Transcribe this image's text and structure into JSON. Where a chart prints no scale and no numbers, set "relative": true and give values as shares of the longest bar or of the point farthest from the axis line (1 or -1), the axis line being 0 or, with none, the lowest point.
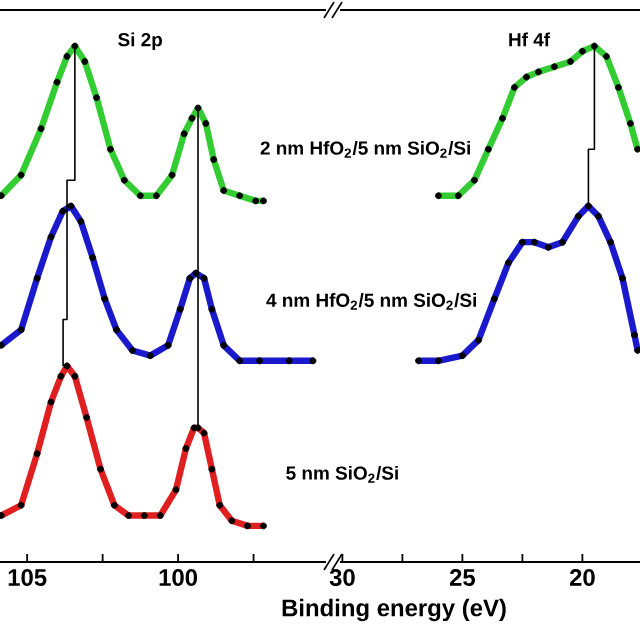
{
  "chart_data": [
    {
      "type": "line",
      "title": "Si 2p",
      "xlabel": "Binding energy (eV)",
      "relative": true,
      "xlim": [
        105.9,
        95.1
      ],
      "xticks": [
        105,
        {
          "value": 102.5,
          "label": null
        },
        100,
        {
          "value": 97.5,
          "label": null
        }
      ],
      "series": [
        {
          "type": "scatter",
          "marker": "circle",
          "color": "#000000",
          "x": [
            105.86,
            105.2,
            104.54,
            104.01,
            103.68,
            103.42,
            103.09,
            102.7,
            102.24,
            101.78,
            101.25,
            100.72,
            100.2,
            99.8,
            99.54,
            99.34,
            99.08,
            98.82,
            98.49,
            97.96,
            97.43,
            97.17
          ],
          "values": [
            0.71,
            0.75,
            0.84,
            0.93,
            0.98,
            1.0,
            0.97,
            0.9,
            0.8,
            0.74,
            0.71,
            0.71,
            0.75,
            0.83,
            0.86,
            0.88,
            0.85,
            0.78,
            0.72,
            0.71,
            0.7,
            0.7
          ]
        },
        {
          "name": "2 nm HfO$_{2}$/5 nm SiO$_{2}$/Si",
          "color": "#33cc33",
          "x": [
            105.86,
            105.2,
            104.54,
            104.01,
            103.68,
            103.42,
            103.09,
            102.7,
            102.24,
            101.78,
            101.25,
            100.72,
            100.2,
            99.8,
            99.54,
            99.34,
            99.08,
            98.82,
            98.49,
            97.96,
            97.43,
            97.17
          ],
          "values": [
            0.71,
            0.75,
            0.84,
            0.93,
            0.98,
            1.0,
            0.97,
            0.9,
            0.8,
            0.74,
            0.71,
            0.71,
            0.75,
            0.83,
            0.86,
            0.88,
            0.85,
            0.78,
            0.72,
            0.71,
            0.7,
            0.7
          ]
        },
        {
          "type": "scatter",
          "marker": "circle",
          "color": "#000000",
          "x": [
            105.86,
            105.2,
            104.67,
            104.21,
            103.82,
            103.55,
            103.22,
            102.83,
            102.43,
            102.04,
            101.51,
            100.92,
            100.33,
            99.93,
            99.61,
            99.41,
            99.14,
            98.88,
            98.49,
            97.96,
            97.3,
            96.32,
            95.53
          ],
          "values": [
            0.42,
            0.45,
            0.55,
            0.63,
            0.68,
            0.69,
            0.66,
            0.59,
            0.51,
            0.45,
            0.41,
            0.4,
            0.42,
            0.49,
            0.55,
            0.56,
            0.55,
            0.49,
            0.42,
            0.39,
            0.39,
            0.39,
            0.39
          ]
        },
        {
          "name": "4 nm HfO$_{2}$/5 nm SiO$_{2}$/Si",
          "color": "#1a1acc",
          "x": [
            105.86,
            105.2,
            104.67,
            104.21,
            103.82,
            103.55,
            103.22,
            102.83,
            102.43,
            102.04,
            101.51,
            100.92,
            100.33,
            99.93,
            99.61,
            99.41,
            99.14,
            98.88,
            98.49,
            97.96,
            97.3,
            96.32,
            95.53
          ],
          "values": [
            0.42,
            0.45,
            0.55,
            0.63,
            0.68,
            0.69,
            0.66,
            0.59,
            0.51,
            0.45,
            0.41,
            0.4,
            0.42,
            0.49,
            0.55,
            0.56,
            0.55,
            0.49,
            0.42,
            0.39,
            0.39,
            0.39,
            0.39
          ]
        },
        {
          "type": "scatter",
          "marker": "circle",
          "color": "#000000",
          "x": [
            105.86,
            105.2,
            104.67,
            104.21,
            103.88,
            103.68,
            103.42,
            103.03,
            102.57,
            102.11,
            101.64,
            101.12,
            100.59,
            100.07,
            99.74,
            99.47,
            99.34,
            99.14,
            98.88,
            98.62,
            98.22,
            97.7,
            97.17
          ],
          "values": [
            0.09,
            0.11,
            0.21,
            0.31,
            0.36,
            0.38,
            0.36,
            0.28,
            0.18,
            0.11,
            0.09,
            0.09,
            0.09,
            0.14,
            0.22,
            0.26,
            0.26,
            0.25,
            0.18,
            0.11,
            0.08,
            0.07,
            0.07
          ]
        },
        {
          "name": "5 nm SiO$_{2}$/Si",
          "color": "#e02020",
          "x": [
            105.86,
            105.2,
            104.67,
            104.21,
            103.88,
            103.68,
            103.42,
            103.03,
            102.57,
            102.11,
            101.64,
            101.12,
            100.59,
            100.07,
            99.74,
            99.47,
            99.34,
            99.14,
            98.88,
            98.62,
            98.22,
            97.7,
            97.17
          ],
          "values": [
            0.09,
            0.11,
            0.21,
            0.31,
            0.36,
            0.38,
            0.36,
            0.28,
            0.18,
            0.11,
            0.09,
            0.09,
            0.09,
            0.14,
            0.22,
            0.26,
            0.26,
            0.25,
            0.18,
            0.11,
            0.08,
            0.07,
            0.07
          ]
        },
        {
          "color": "#000000",
          "x": [
            103.81,
            103.81,
            103.68,
            103.68,
            103.42,
            103.42
          ],
          "values": [
            0.38,
            0.47,
            0.47,
            0.74,
            0.74,
            1.0
          ]
        },
        {
          "color": "#000000",
          "x": [
            99.34,
            99.34
          ],
          "values": [
            0.26,
            0.88
          ]
        }
      ]
    },
    {
      "type": "line",
      "title": "Hf 4f",
      "relative": true,
      "xlim": [
        30.1,
        17.6
      ],
      "xticks": [
        30,
        {
          "value": 27.5,
          "label": null
        },
        25,
        {
          "value": 22.5,
          "label": null
        },
        20
      ],
      "series": [
        {
          "type": "scatter",
          "marker": "circle",
          "color": "#000000",
          "x": [
            26.0,
            25.17,
            24.5,
            23.92,
            23.33,
            22.83,
            22.33,
            21.83,
            21.17,
            20.5,
            20.0,
            19.5,
            19.0,
            18.5,
            18.0,
            17.7
          ],
          "values": [
            0.71,
            0.71,
            0.74,
            0.8,
            0.86,
            0.92,
            0.94,
            0.95,
            0.96,
            0.97,
            0.99,
            1.0,
            0.98,
            0.92,
            0.85,
            0.8
          ]
        },
        {
          "color": "#33cc33",
          "x": [
            26.0,
            25.17,
            24.5,
            23.92,
            23.33,
            22.83,
            22.33,
            21.83,
            21.17,
            20.5,
            20.0,
            19.5,
            19.0,
            18.5,
            18.0,
            17.7
          ],
          "values": [
            0.71,
            0.71,
            0.74,
            0.8,
            0.86,
            0.92,
            0.94,
            0.95,
            0.96,
            0.97,
            0.99,
            1.0,
            0.98,
            0.92,
            0.85,
            0.8
          ]
        },
        {
          "type": "scatter",
          "marker": "circle",
          "color": "#000000",
          "x": [
            26.83,
            26.0,
            25.0,
            24.33,
            23.67,
            23.08,
            22.5,
            22.0,
            21.42,
            20.83,
            20.17,
            19.75,
            19.33,
            18.83,
            18.33,
            17.83,
            17.7
          ],
          "values": [
            0.39,
            0.39,
            0.4,
            0.43,
            0.51,
            0.58,
            0.62,
            0.62,
            0.61,
            0.62,
            0.67,
            0.69,
            0.67,
            0.62,
            0.55,
            0.44,
            0.41
          ]
        },
        {
          "color": "#1a1acc",
          "x": [
            26.83,
            26.0,
            25.0,
            24.33,
            23.67,
            23.08,
            22.5,
            22.0,
            21.42,
            20.83,
            20.17,
            19.75,
            19.33,
            18.83,
            18.33,
            17.83,
            17.7
          ],
          "values": [
            0.39,
            0.39,
            0.4,
            0.43,
            0.51,
            0.58,
            0.62,
            0.62,
            0.61,
            0.62,
            0.67,
            0.69,
            0.67,
            0.62,
            0.55,
            0.44,
            0.41
          ]
        },
        {
          "color": "#000000",
          "x": [
            19.75,
            19.75,
            19.5,
            19.5
          ],
          "values": [
            0.69,
            0.8,
            0.8,
            1.0
          ]
        }
      ]
    }
  ]
}
